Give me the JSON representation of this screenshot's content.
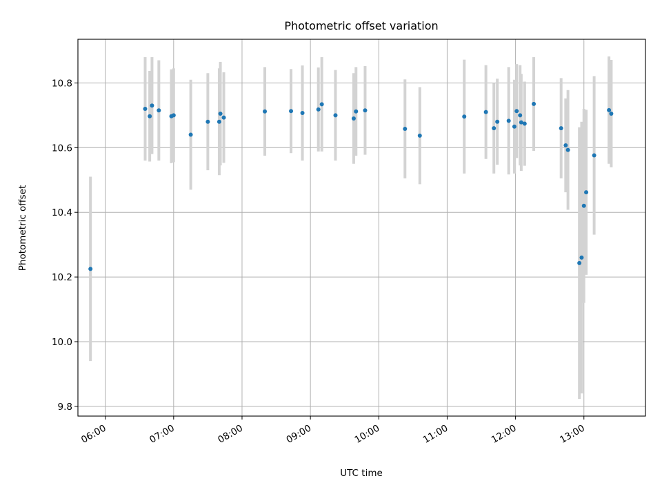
{
  "chart_data": {
    "type": "scatter",
    "title": "Photometric offset variation",
    "xlabel": "UTC time",
    "ylabel": "Photometric offset",
    "xlim": [
      "05:36",
      "13:54"
    ],
    "ylim": [
      9.77,
      10.935
    ],
    "grid": true,
    "x_ticks": [
      "06:00",
      "07:00",
      "08:00",
      "09:00",
      "10:00",
      "11:00",
      "12:00",
      "13:00"
    ],
    "y_ticks": [
      9.8,
      10.0,
      10.2,
      10.4,
      10.6,
      10.8
    ],
    "point_color": "#1f77b4",
    "errorbar_color": "#d3d3d3",
    "series": [
      {
        "x": [
          "05:47",
          "06:35",
          "06:39",
          "06:41",
          "06:47",
          "06:58",
          "07:00",
          "07:15",
          "07:30",
          "07:40",
          "07:41",
          "07:44",
          "08:20",
          "08:43",
          "08:53",
          "09:07",
          "09:10",
          "09:22",
          "09:38",
          "09:40",
          "09:48",
          "10:23",
          "10:36",
          "11:15",
          "11:34",
          "11:41",
          "11:44",
          "11:54",
          "11:59",
          "12:01",
          "12:04",
          "12:05",
          "12:08",
          "12:16",
          "12:40",
          "12:44",
          "12:46",
          "12:56",
          "12:58",
          "13:00",
          "13:02",
          "13:09",
          "13:22",
          "13:24"
        ],
        "y": [
          10.225,
          10.72,
          10.697,
          10.73,
          10.715,
          10.697,
          10.7,
          10.64,
          10.68,
          10.68,
          10.705,
          10.693,
          10.712,
          10.713,
          10.707,
          10.718,
          10.734,
          10.7,
          10.69,
          10.712,
          10.715,
          10.658,
          10.637,
          10.696,
          10.71,
          10.66,
          10.68,
          10.683,
          10.665,
          10.713,
          10.7,
          10.678,
          10.674,
          10.735,
          10.66,
          10.607,
          10.593,
          10.243,
          10.26,
          10.42,
          10.462,
          10.576,
          10.716,
          10.705
        ],
        "yerr": [
          0.285,
          0.16,
          0.14,
          0.15,
          0.155,
          0.145,
          0.145,
          0.17,
          0.15,
          0.165,
          0.16,
          0.14,
          0.137,
          0.13,
          0.147,
          0.13,
          0.146,
          0.14,
          0.14,
          0.137,
          0.137,
          0.153,
          0.15,
          0.176,
          0.145,
          0.14,
          0.133,
          0.166,
          0.145,
          0.145,
          0.155,
          0.15,
          0.13,
          0.145,
          0.155,
          0.145,
          0.185,
          0.42,
          0.42,
          0.3,
          0.255,
          0.245,
          0.166,
          0.166
        ]
      }
    ]
  }
}
